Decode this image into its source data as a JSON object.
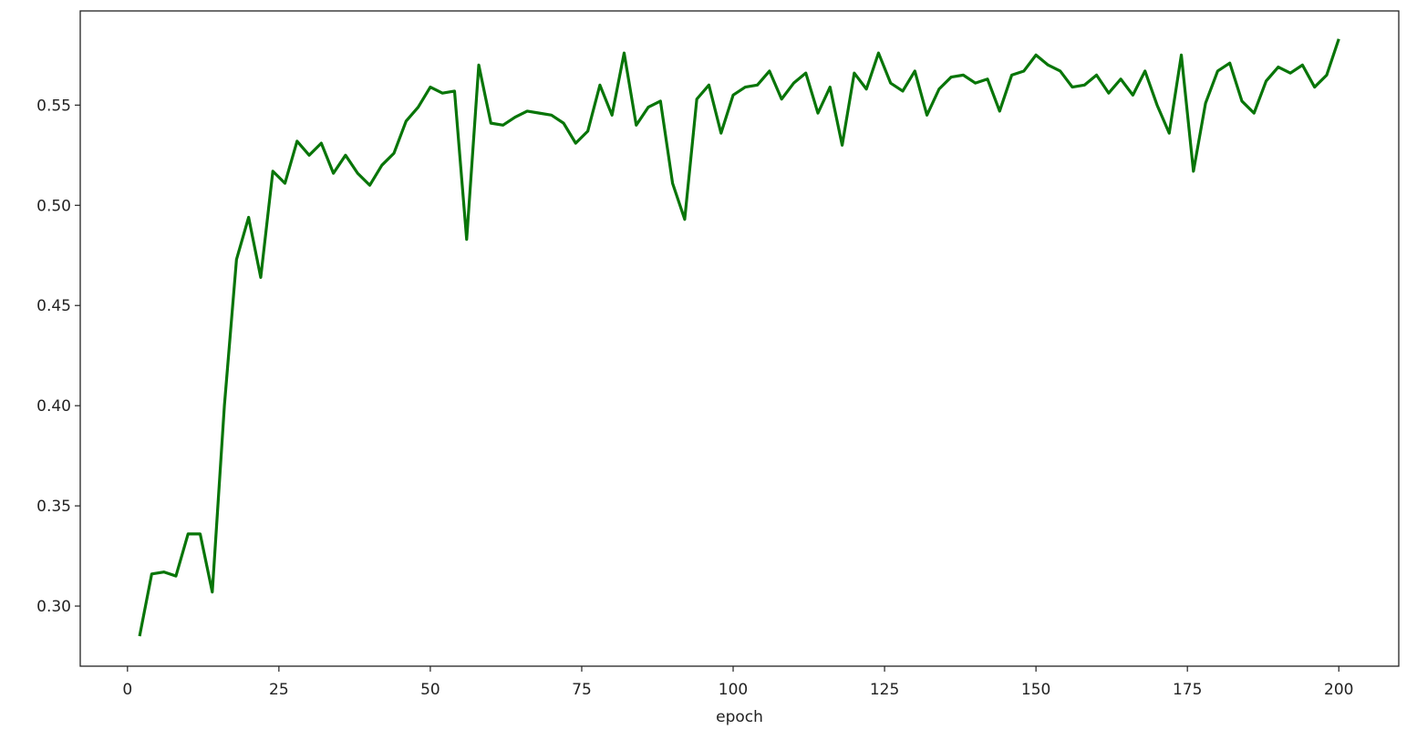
{
  "chart_data": {
    "type": "line",
    "title": "",
    "xlabel": "epoch",
    "ylabel": "",
    "xlim": [
      -7.8,
      209.9
    ],
    "ylim": [
      0.27,
      0.597
    ],
    "xticks": [
      0,
      25,
      50,
      75,
      100,
      125,
      150,
      175,
      200
    ],
    "yticks": [
      0.3,
      0.35,
      0.4,
      0.45,
      0.5,
      0.55
    ],
    "ytick_labels": [
      "0.30",
      "0.35",
      "0.40",
      "0.45",
      "0.50",
      "0.55"
    ],
    "grid": false,
    "legend": "none",
    "series": [
      {
        "color": "#087508",
        "x": [
          2,
          4,
          6,
          8,
          10,
          12,
          14,
          16,
          18,
          20,
          22,
          24,
          26,
          28,
          30,
          32,
          34,
          36,
          38,
          40,
          42,
          44,
          46,
          48,
          50,
          52,
          54,
          56,
          58,
          60,
          62,
          64,
          66,
          68,
          70,
          72,
          74,
          76,
          78,
          80,
          82,
          84,
          86,
          88,
          90,
          92,
          94,
          96,
          98,
          100,
          102,
          104,
          106,
          108,
          110,
          112,
          114,
          116,
          118,
          120,
          122,
          124,
          126,
          128,
          130,
          132,
          134,
          136,
          138,
          140,
          142,
          144,
          146,
          148,
          150,
          152,
          154,
          156,
          158,
          160,
          162,
          164,
          166,
          168,
          170,
          172,
          174,
          176,
          178,
          180,
          182,
          184,
          186,
          188,
          190,
          192,
          194,
          196,
          198,
          200
        ],
        "y": [
          0.285,
          0.316,
          0.317,
          0.315,
          0.336,
          0.336,
          0.307,
          0.4,
          0.473,
          0.494,
          0.464,
          0.517,
          0.511,
          0.532,
          0.525,
          0.531,
          0.516,
          0.525,
          0.516,
          0.51,
          0.52,
          0.526,
          0.542,
          0.549,
          0.559,
          0.556,
          0.557,
          0.483,
          0.57,
          0.541,
          0.54,
          0.544,
          0.547,
          0.546,
          0.545,
          0.541,
          0.531,
          0.537,
          0.56,
          0.545,
          0.576,
          0.54,
          0.549,
          0.552,
          0.511,
          0.493,
          0.553,
          0.56,
          0.536,
          0.555,
          0.559,
          0.56,
          0.567,
          0.553,
          0.561,
          0.566,
          0.546,
          0.559,
          0.53,
          0.566,
          0.558,
          0.576,
          0.561,
          0.557,
          0.567,
          0.545,
          0.558,
          0.564,
          0.565,
          0.561,
          0.563,
          0.547,
          0.565,
          0.567,
          0.575,
          0.57,
          0.567,
          0.559,
          0.56,
          0.565,
          0.556,
          0.563,
          0.555,
          0.567,
          0.55,
          0.536,
          0.575,
          0.517,
          0.551,
          0.567,
          0.571,
          0.552,
          0.546,
          0.562,
          0.569,
          0.566,
          0.57,
          0.559,
          0.565,
          0.583
        ]
      }
    ]
  }
}
